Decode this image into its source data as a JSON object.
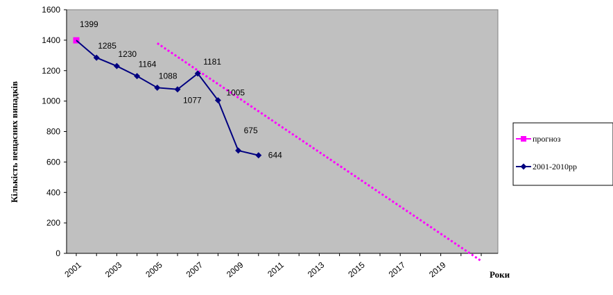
{
  "chart_data": {
    "type": "line",
    "title": "",
    "xlabel": "Роки",
    "ylabel": "Кількість нещасних випадків",
    "ylim": [
      0,
      1600
    ],
    "y_ticks": [
      "0",
      "200",
      "400",
      "600",
      "800",
      "1000",
      "1200",
      "1400",
      "1600"
    ],
    "x_ticks": [
      "2001",
      "2003",
      "2005",
      "2007",
      "2009",
      "2011",
      "2013",
      "2015",
      "2017",
      "2019"
    ],
    "grid": false,
    "plot_background": "#c0c0c0",
    "legend_position": "right",
    "series": [
      {
        "name": "прогноз",
        "color": "#ff00ff",
        "style": "dotted",
        "x": [
          2001,
          2005,
          2021
        ],
        "y": [
          1399,
          1380,
          -50
        ],
        "labels": [
          "",
          "",
          ""
        ]
      },
      {
        "name": "2001-2010рр",
        "color": "#000080",
        "style": "solid",
        "marker": "diamond",
        "x": [
          2001,
          2002,
          2003,
          2004,
          2005,
          2006,
          2007,
          2008,
          2009,
          2010
        ],
        "y": [
          1399,
          1285,
          1230,
          1164,
          1088,
          1077,
          1181,
          1005,
          675,
          644
        ],
        "labels": [
          "1399",
          "1285",
          "1230",
          "1164",
          "1088",
          "1077",
          "1181",
          "1005",
          "675",
          "644"
        ]
      }
    ]
  }
}
